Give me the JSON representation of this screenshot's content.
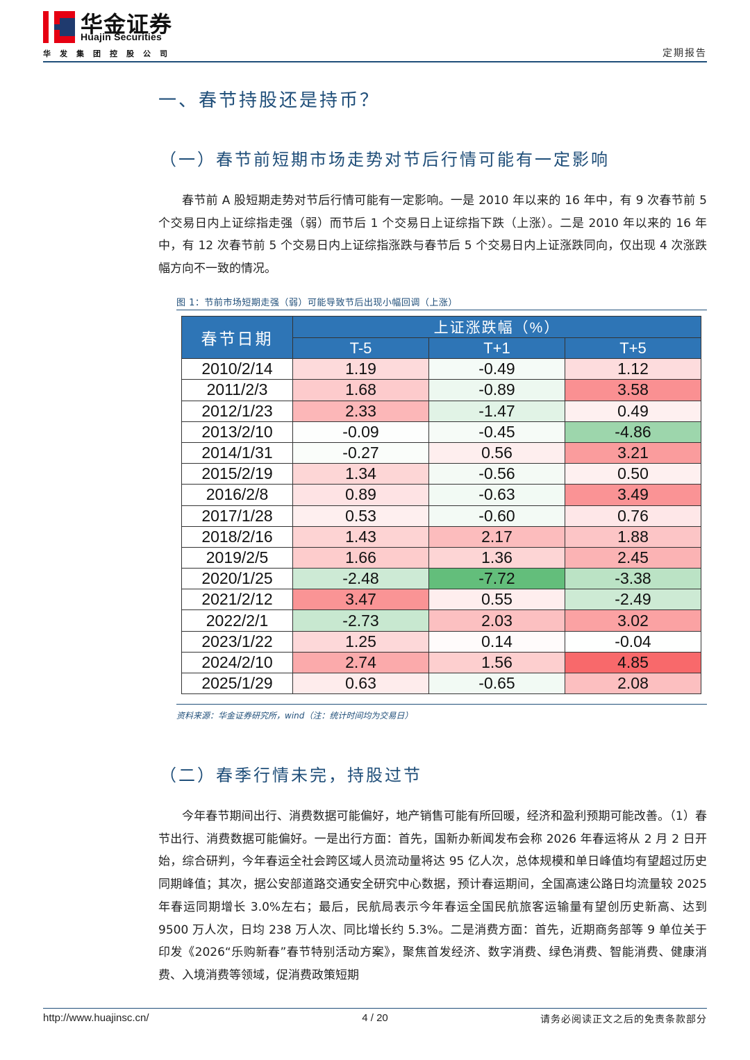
{
  "header": {
    "logo_cn": "华金证券",
    "logo_en": "Huajin Securities",
    "logo_sub": "华发集团控股公司",
    "report_type": "定期报告",
    "brand_red": "#e60012",
    "brand_navy": "#1f3a6e"
  },
  "section1": {
    "title": "一、春节持股还是持币？"
  },
  "sub1": {
    "title": "（一）春节前短期市场走势对节后行情可能有一定影响",
    "paragraph": "春节前 A 股短期走势对节后行情可能有一定影响。一是 2010 年以来的 16 年中，有 9 次春节前 5 个交易日内上证综指走强（弱）而节后 1 个交易日上证综指下跌（上涨）。二是 2010 年以来的 16 年中，有 12 次春节前 5 个交易日内上证综指涨跌与春节后 5 个交易日内上证涨跌同向，仅出现 4 次涨跌幅方向不一致的情况。"
  },
  "figure": {
    "caption": "图 1：节前市场短期走强（弱）可能导致节后出现小幅回调（上涨）",
    "source": "资料来源：华金证券研究所，wind（注：统计时间均为交易日）"
  },
  "chart_data": {
    "type": "table",
    "date_header": "春节日期",
    "group_header": "上证涨跌幅（%）",
    "columns": [
      "T-5",
      "T+1",
      "T+5"
    ],
    "rows": [
      {
        "date": "2010/2/14",
        "values": [
          "1.19",
          "-0.49",
          "1.12"
        ]
      },
      {
        "date": "2011/2/3",
        "values": [
          "1.68",
          "-0.89",
          "3.58"
        ]
      },
      {
        "date": "2012/1/23",
        "values": [
          "2.33",
          "-1.47",
          "0.49"
        ]
      },
      {
        "date": "2013/2/10",
        "values": [
          "-0.09",
          "-0.45",
          "-4.86"
        ]
      },
      {
        "date": "2014/1/31",
        "values": [
          "-0.27",
          "0.56",
          "3.21"
        ]
      },
      {
        "date": "2015/2/19",
        "values": [
          "1.34",
          "-0.56",
          "0.50"
        ]
      },
      {
        "date": "2016/2/8",
        "values": [
          "0.89",
          "-0.63",
          "3.49"
        ]
      },
      {
        "date": "2017/1/28",
        "values": [
          "0.53",
          "-0.60",
          "0.76"
        ]
      },
      {
        "date": "2018/2/16",
        "values": [
          "1.43",
          "2.17",
          "1.88"
        ]
      },
      {
        "date": "2019/2/5",
        "values": [
          "1.66",
          "1.36",
          "2.45"
        ]
      },
      {
        "date": "2020/1/25",
        "values": [
          "-2.48",
          "-7.72",
          "-3.38"
        ]
      },
      {
        "date": "2021/2/12",
        "values": [
          "3.47",
          "0.55",
          "-2.49"
        ]
      },
      {
        "date": "2022/2/1",
        "values": [
          "-2.73",
          "2.03",
          "3.02"
        ]
      },
      {
        "date": "2023/1/22",
        "values": [
          "1.25",
          "0.14",
          "-0.04"
        ]
      },
      {
        "date": "2024/2/10",
        "values": [
          "2.74",
          "1.56",
          "4.85"
        ]
      },
      {
        "date": "2025/1/29",
        "values": [
          "0.63",
          "-0.65",
          "2.08"
        ]
      }
    ],
    "colors": {
      "header_bg": "#2e75b6",
      "positive_max": "#f8696b",
      "negative_max": "#63be7b",
      "neutral": "#ffffff"
    }
  },
  "sub2": {
    "title": "（二）春季行情未完，持股过节",
    "paragraph": "今年春节期间出行、消费数据可能偏好，地产销售可能有所回暖，经济和盈利预期可能改善。（1）春节出行、消费数据可能偏好。一是出行方面：首先，国新办新闻发布会称 2026 年春运将从 2 月 2 日开始，综合研判，今年春运全社会跨区域人员流动量将达 95 亿人次，总体规模和单日峰值均有望超过历史同期峰值；其次，据公安部道路交通安全研究中心数据，预计春运期间，全国高速公路日均流量较 2025 年春运同期增长 3.0%左右；最后，民航局表示今年春运全国民航旅客运输量有望创历史新高、达到 9500 万人次，日均 238 万人次、同比增长约 5.3%。二是消费方面：首先，近期商务部等 9 单位关于印发《2026“乐购新春”春节特别活动方案》，聚焦首发经济、数字消费、绿色消费、智能消费、健康消费、入境消费等领域，促消费政策短期"
  },
  "footer": {
    "url": "http://www.huajinsc.cn/",
    "page": "4 / 20",
    "note": "请务必阅读正文之后的免责条款部分"
  }
}
